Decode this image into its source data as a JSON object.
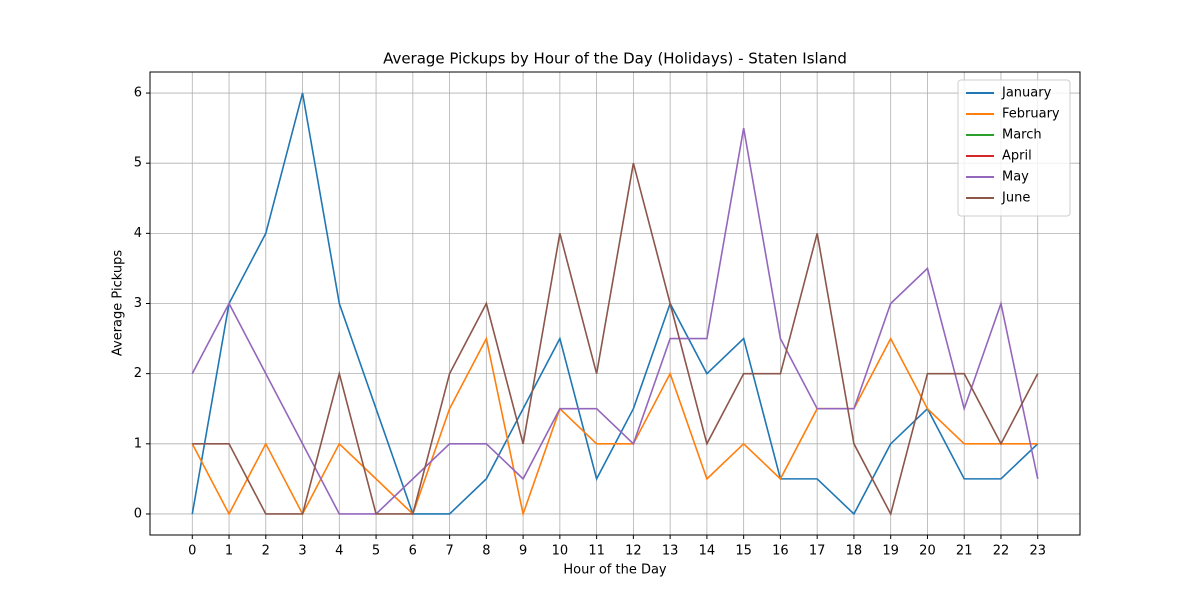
{
  "chart_data": {
    "type": "line",
    "title": "Average Pickups by Hour of the Day (Holidays) - Staten Island",
    "x_label": "Hour of the Day",
    "y_label": "Average Pickups",
    "x": [
      0,
      1,
      2,
      3,
      4,
      5,
      6,
      7,
      8,
      9,
      10,
      11,
      12,
      13,
      14,
      15,
      16,
      17,
      18,
      19,
      20,
      21,
      22,
      23
    ],
    "series": [
      {
        "name": "January",
        "color": "#1f77b4",
        "values": [
          0,
          3,
          4,
          6,
          3,
          1.5,
          0,
          0,
          0.5,
          1.5,
          2.5,
          0.5,
          1.5,
          3,
          2,
          2.5,
          0.5,
          0.5,
          0,
          1,
          1.5,
          0.5,
          0.5,
          1
        ]
      },
      {
        "name": "February",
        "color": "#ff7f0e",
        "values": [
          1,
          0,
          1,
          0,
          1,
          0.5,
          0,
          1.5,
          2.5,
          0,
          1.5,
          1,
          1,
          2,
          0.5,
          1,
          0.5,
          1.5,
          1.5,
          2.5,
          1.5,
          1,
          1,
          1
        ]
      },
      {
        "name": "March",
        "color": "#2ca02c",
        "values": [
          null,
          null,
          null,
          null,
          null,
          null,
          null,
          null,
          null,
          null,
          null,
          null,
          null,
          null,
          null,
          null,
          null,
          null,
          null,
          null,
          null,
          null,
          null,
          null
        ]
      },
      {
        "name": "April",
        "color": "#d62728",
        "values": [
          null,
          null,
          null,
          null,
          null,
          null,
          null,
          null,
          null,
          null,
          null,
          null,
          null,
          null,
          null,
          null,
          null,
          null,
          null,
          null,
          null,
          null,
          null,
          null
        ]
      },
      {
        "name": "May",
        "color": "#9467bd",
        "values": [
          2,
          3,
          2,
          1,
          0,
          0,
          0.5,
          1,
          1,
          0.5,
          1.5,
          1.5,
          1,
          2.5,
          2.5,
          5.5,
          2.5,
          1.5,
          1.5,
          3,
          3.5,
          1.5,
          3,
          0.5
        ]
      },
      {
        "name": "June",
        "color": "#8c564b",
        "values": [
          1,
          1,
          0,
          0,
          2,
          0,
          0,
          2,
          3,
          1,
          4,
          2,
          5,
          3,
          1,
          2,
          2,
          4,
          1,
          0,
          2,
          2,
          1,
          2
        ]
      }
    ],
    "xlim": [
      -1.15,
      24.15
    ],
    "ylim": [
      -0.3,
      6.3
    ],
    "xticks": [
      0,
      1,
      2,
      3,
      4,
      5,
      6,
      7,
      8,
      9,
      10,
      11,
      12,
      13,
      14,
      15,
      16,
      17,
      18,
      19,
      20,
      21,
      22,
      23
    ],
    "yticks": [
      0,
      1,
      2,
      3,
      4,
      5,
      6
    ],
    "grid": true,
    "legend": "upper right"
  }
}
